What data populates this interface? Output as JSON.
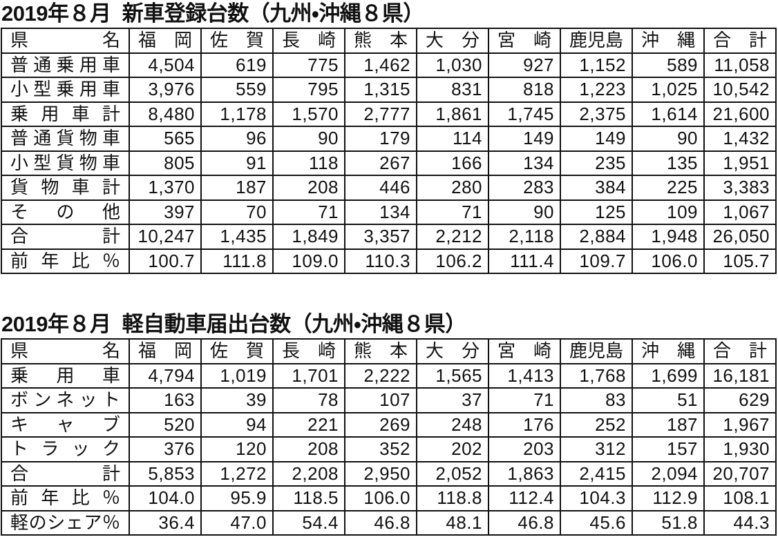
{
  "tables": [
    {
      "title": "2019年８月  新車登録台数（九州・沖縄８県）",
      "header": [
        "県 名",
        "福 岡",
        "佐 賀",
        "長 崎",
        "熊 本",
        "大 分",
        "宮 崎",
        "鹿児島",
        "沖 縄",
        "合 計"
      ],
      "rows": [
        [
          "普通乗用車",
          "4,504",
          "619",
          "775",
          "1,462",
          "1,030",
          "927",
          "1,152",
          "589",
          "11,058"
        ],
        [
          "小型乗用車",
          "3,976",
          "559",
          "795",
          "1,315",
          "831",
          "818",
          "1,223",
          "1,025",
          "10,542"
        ],
        [
          "乗 用 車 計",
          "8,480",
          "1,178",
          "1,570",
          "2,777",
          "1,861",
          "1,745",
          "2,375",
          "1,614",
          "21,600"
        ],
        [
          "普通貨物車",
          "565",
          "96",
          "90",
          "179",
          "114",
          "149",
          "149",
          "90",
          "1,432"
        ],
        [
          "小型貨物車",
          "805",
          "91",
          "118",
          "267",
          "166",
          "134",
          "235",
          "135",
          "1,951"
        ],
        [
          "貨 物 車 計",
          "1,370",
          "187",
          "208",
          "446",
          "280",
          "283",
          "384",
          "225",
          "3,383"
        ],
        [
          "そ の 他",
          "397",
          "70",
          "71",
          "134",
          "71",
          "90",
          "125",
          "109",
          "1,067"
        ],
        [
          "合 計",
          "10,247",
          "1,435",
          "1,849",
          "3,357",
          "2,212",
          "2,118",
          "2,884",
          "1,948",
          "26,050"
        ],
        [
          "前 年 比 ％",
          "100.7",
          "111.8",
          "109.0",
          "110.3",
          "106.2",
          "111.4",
          "109.7",
          "106.0",
          "105.7"
        ]
      ]
    },
    {
      "title": "2019年８月  軽自動車届出台数（九州・沖縄８県）",
      "header": [
        "県 名",
        "福 岡",
        "佐 賀",
        "長 崎",
        "熊 本",
        "大 分",
        "宮 崎",
        "鹿児島",
        "沖 縄",
        "合 計"
      ],
      "rows": [
        [
          "乗 用 車",
          "4,794",
          "1,019",
          "1,701",
          "2,222",
          "1,565",
          "1,413",
          "1,768",
          "1,699",
          "16,181"
        ],
        [
          "ボンネット",
          "163",
          "39",
          "78",
          "107",
          "37",
          "71",
          "83",
          "51",
          "629"
        ],
        [
          "キ ャ ブ",
          "520",
          "94",
          "221",
          "269",
          "248",
          "176",
          "252",
          "187",
          "1,967"
        ],
        [
          "ト ラ ッ ク",
          "376",
          "120",
          "208",
          "352",
          "202",
          "203",
          "312",
          "157",
          "1,930"
        ],
        [
          "合 計",
          "5,853",
          "1,272",
          "2,208",
          "2,950",
          "2,052",
          "1,863",
          "2,415",
          "2,094",
          "20,707"
        ],
        [
          "前 年 比 ％",
          "104.0",
          "95.9",
          "118.5",
          "106.0",
          "118.8",
          "112.4",
          "104.3",
          "112.9",
          "108.1"
        ],
        [
          "軽のシェア％",
          "36.4",
          "47.0",
          "54.4",
          "46.8",
          "48.1",
          "46.8",
          "45.6",
          "51.8",
          "44.3"
        ]
      ]
    }
  ]
}
